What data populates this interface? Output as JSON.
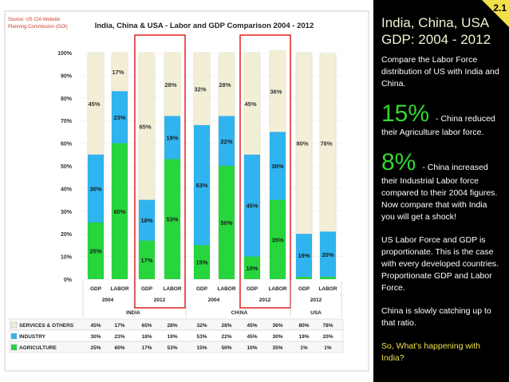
{
  "source_note": [
    "Source: US CIA Website",
    "Planning Commission (GOI)"
  ],
  "slide_number": "2.1",
  "side": {
    "title_line1": "India, China, USA",
    "title_line2": "GDP: 2004 - 2012",
    "p1": "Compare the Labor Force distribution of US with India and China.",
    "big1": "15%",
    "note1": "- China reduced",
    "note1b": "their Agriculture labor force.",
    "big2": "8%",
    "note2": "- China increased",
    "note2b": "their Industrial Labor force compared to their 2004 figures. Now compare that with India you will get a shock!",
    "p2": "US Labor Force and GDP is proportionate. This is the case with every developed countries. Proportionate GDP and Labor Force.",
    "p3": "China is slowly catching up to that ratio.",
    "p4": "So, What's happening with India?"
  },
  "colors": {
    "services": "#f2efd6",
    "industry": "#2fb4f0",
    "agriculture": "#27d63c",
    "highlight": "#e02020",
    "accent": "#f2e04a"
  },
  "chart_data": {
    "type": "bar",
    "stacked": true,
    "title": "India, China & USA - Labor and GDP Comparison 2004 - 2012",
    "categories": [
      "GDP 2004",
      "LABOR 2004",
      "GDP 2012",
      "LABOR 2012",
      "GDP 2004",
      "LABOR 2004",
      "GDP 2012",
      "LABOR 2012",
      "GDP 2012",
      "LABOR 2012"
    ],
    "cat_top": [
      "GDP",
      "LABOR",
      "GDP",
      "LABOR",
      "GDP",
      "LABOR",
      "GDP",
      "LABOR",
      "GDP",
      "LABOR"
    ],
    "years": [
      "2004",
      "2012",
      "2004",
      "2012",
      "2012"
    ],
    "countries": [
      "INDIA",
      "CHINA",
      "USA"
    ],
    "yticks": [
      "0%",
      "10%",
      "20%",
      "30%",
      "40%",
      "50%",
      "60%",
      "70%",
      "80%",
      "90%",
      "100%"
    ],
    "ylim": [
      0,
      100
    ],
    "series": [
      {
        "name": "AGRICULTURE",
        "values": [
          25,
          60,
          17,
          53,
          15,
          50,
          10,
          35,
          1,
          1
        ],
        "labels": [
          "25%",
          "60%",
          "17%",
          "53%",
          "15%",
          "50%",
          "10%",
          "35%",
          "1%",
          "1%"
        ]
      },
      {
        "name": "INDUSTRY",
        "values": [
          30,
          23,
          18,
          19,
          53,
          22,
          45,
          30,
          19,
          20
        ],
        "labels": [
          "30%",
          "23%",
          "18%",
          "19%",
          "53%",
          "22%",
          "45%",
          "30%",
          "19%",
          "20%"
        ]
      },
      {
        "name": "SERVICES & OTHERS",
        "values": [
          45,
          17,
          65,
          28,
          32,
          28,
          45,
          36,
          80,
          78
        ],
        "labels": [
          "45%",
          "17%",
          "65%",
          "28%",
          "32%",
          "28%",
          "45%",
          "36%",
          "80%",
          "78%"
        ]
      }
    ],
    "table_rows": [
      {
        "label": "SERVICES & OTHERS",
        "cells": [
          "45%",
          "17%",
          "65%",
          "28%",
          "32%",
          "28%",
          "45%",
          "36%",
          "80%",
          "78%"
        ]
      },
      {
        "label": "INDUSTRY",
        "cells": [
          "30%",
          "23%",
          "18%",
          "19%",
          "53%",
          "22%",
          "45%",
          "30%",
          "19%",
          "20%"
        ]
      },
      {
        "label": "AGRICULTURE",
        "cells": [
          "25%",
          "60%",
          "17%",
          "53%",
          "15%",
          "50%",
          "10%",
          "35%",
          "1%",
          "1%"
        ]
      }
    ],
    "highlight_groups": [
      "INDIA 2012",
      "CHINA 2012"
    ]
  }
}
